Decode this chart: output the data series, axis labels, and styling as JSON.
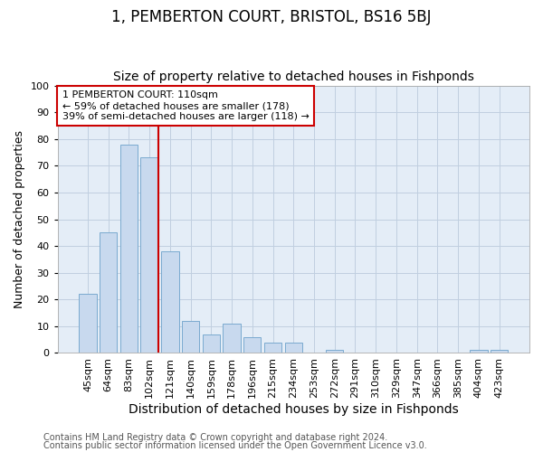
{
  "title": "1, PEMBERTON COURT, BRISTOL, BS16 5BJ",
  "subtitle": "Size of property relative to detached houses in Fishponds",
  "xlabel": "Distribution of detached houses by size in Fishponds",
  "ylabel": "Number of detached properties",
  "categories": [
    "45sqm",
    "64sqm",
    "83sqm",
    "102sqm",
    "121sqm",
    "140sqm",
    "159sqm",
    "178sqm",
    "196sqm",
    "215sqm",
    "234sqm",
    "253sqm",
    "272sqm",
    "291sqm",
    "310sqm",
    "329sqm",
    "347sqm",
    "366sqm",
    "385sqm",
    "404sqm",
    "423sqm"
  ],
  "values": [
    22,
    45,
    78,
    73,
    38,
    12,
    7,
    11,
    6,
    4,
    4,
    0,
    1,
    0,
    0,
    0,
    0,
    0,
    0,
    1,
    1
  ],
  "bar_color": "#c8d9ee",
  "bar_edge_color": "#7aaacf",
  "vline_x_index": 3,
  "vline_color": "#cc0000",
  "annotation_text": "1 PEMBERTON COURT: 110sqm\n← 59% of detached houses are smaller (178)\n39% of semi-detached houses are larger (118) →",
  "annotation_box_facecolor": "white",
  "annotation_box_edgecolor": "#cc0000",
  "ylim": [
    0,
    100
  ],
  "yticks": [
    0,
    10,
    20,
    30,
    40,
    50,
    60,
    70,
    80,
    90,
    100
  ],
  "grid_color": "#c0cfe0",
  "bg_color": "#e4edf7",
  "footer1": "Contains HM Land Registry data © Crown copyright and database right 2024.",
  "footer2": "Contains public sector information licensed under the Open Government Licence v3.0.",
  "title_fontsize": 12,
  "subtitle_fontsize": 10,
  "xlabel_fontsize": 10,
  "ylabel_fontsize": 9,
  "tick_fontsize": 8,
  "annotation_fontsize": 8,
  "footer_fontsize": 7
}
